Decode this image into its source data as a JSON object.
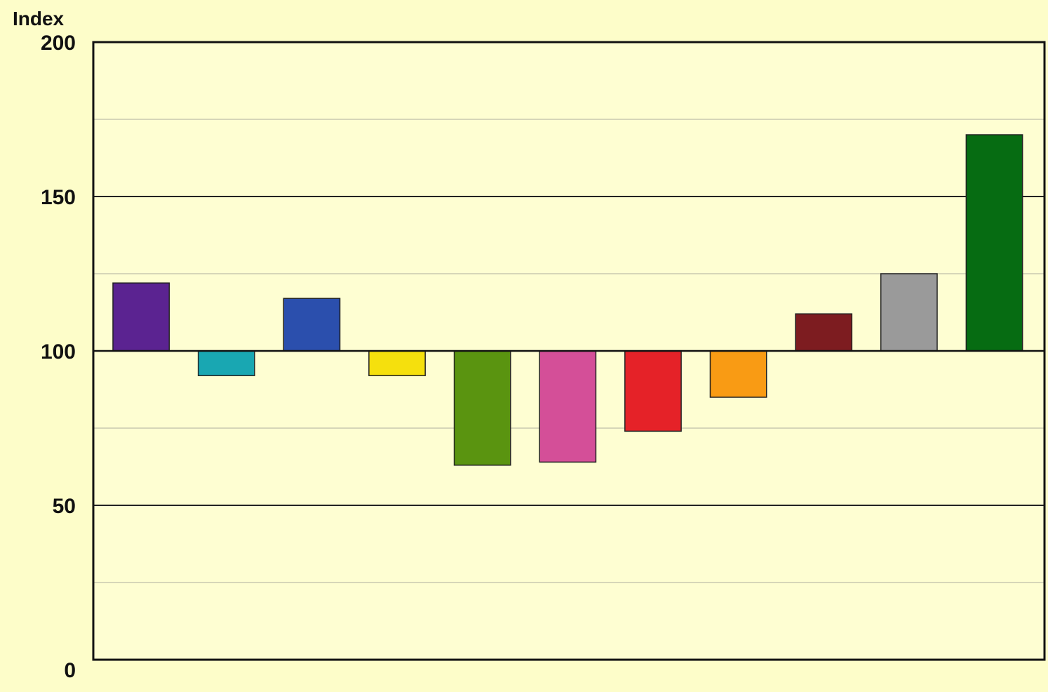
{
  "background_color": "#fdfdc9",
  "plot_background_color": "#fefed2",
  "chart_data": {
    "type": "bar",
    "title": "",
    "xlabel": "",
    "ylabel": "Index",
    "ylim": [
      0,
      200
    ],
    "baseline": 100,
    "yticks": [
      0,
      50,
      100,
      150,
      200
    ],
    "ytick_labels": [
      "0",
      "50",
      "100",
      "150",
      "200"
    ],
    "minor_gridlines": [
      25,
      75,
      125,
      175
    ],
    "grid": true,
    "legend": "none",
    "bars": [
      {
        "value": 122,
        "color": "#5b2391"
      },
      {
        "value": 92,
        "color": "#19a7b2"
      },
      {
        "value": 117,
        "color": "#2b4fad"
      },
      {
        "value": 92,
        "color": "#f5e00d"
      },
      {
        "value": 63,
        "color": "#5a9410"
      },
      {
        "value": 64,
        "color": "#d44f98"
      },
      {
        "value": 74,
        "color": "#e52228"
      },
      {
        "value": 85,
        "color": "#f99b14"
      },
      {
        "value": 112,
        "color": "#7d1c20"
      },
      {
        "value": 125,
        "color": "#9a9a9a"
      },
      {
        "value": 170,
        "color": "#066c12"
      }
    ]
  }
}
